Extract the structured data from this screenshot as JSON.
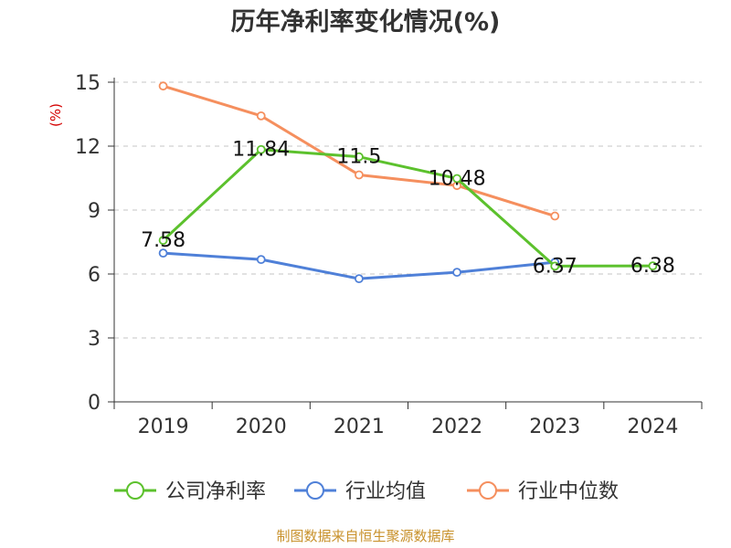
{
  "chart_data": {
    "type": "line",
    "title": "历年净利率变化情况(%)",
    "ylabel": "(%)",
    "categories": [
      "2019",
      "2020",
      "2021",
      "2022",
      "2023",
      "2024"
    ],
    "ylim": [
      0,
      15
    ],
    "yticks": [
      0,
      3,
      6,
      9,
      12,
      15
    ],
    "grid": true,
    "legend_position": "bottom",
    "series": [
      {
        "name": "公司净利率",
        "color": "#5cc12d",
        "values": [
          7.58,
          11.84,
          11.5,
          10.48,
          6.37,
          6.38
        ],
        "labels": [
          "7.58",
          "11.84",
          "11.5",
          "10.48",
          "6.37",
          "6.38"
        ]
      },
      {
        "name": "行业均值",
        "color": "#4f80d8",
        "values": [
          6.98,
          6.68,
          5.78,
          6.08,
          6.55,
          null
        ],
        "labels": []
      },
      {
        "name": "行业中位数",
        "color": "#f58f5e",
        "values": [
          14.82,
          13.42,
          10.65,
          10.15,
          8.72,
          null
        ],
        "labels": []
      }
    ]
  },
  "source": "制图数据来自恒生聚源数据库"
}
